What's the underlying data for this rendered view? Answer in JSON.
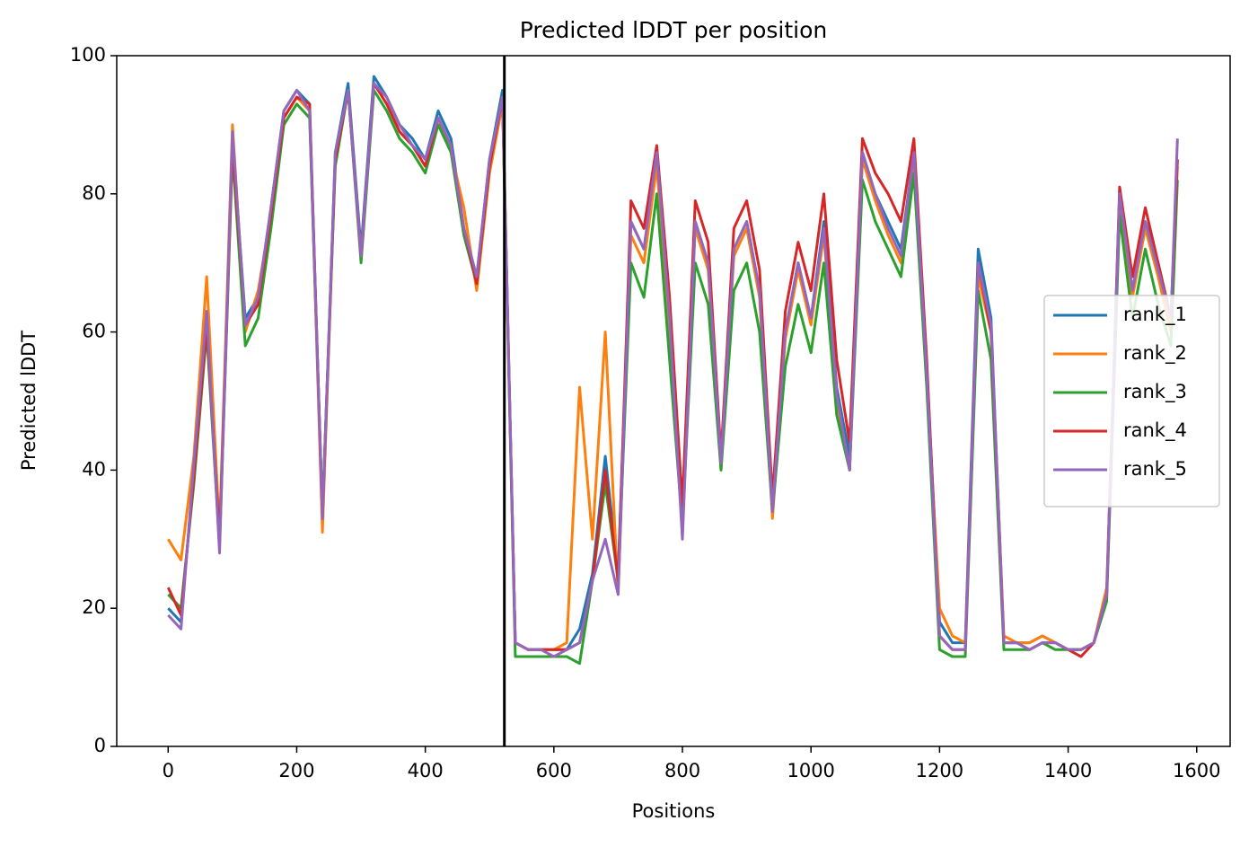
{
  "chart_data": {
    "type": "line",
    "title": "Predicted lDDT per position",
    "xlabel": "Positions",
    "ylabel": "Predicted lDDT",
    "x": [
      0,
      20,
      40,
      60,
      80,
      100,
      120,
      140,
      160,
      180,
      200,
      220,
      240,
      260,
      280,
      300,
      320,
      340,
      360,
      380,
      400,
      420,
      440,
      460,
      480,
      500,
      520,
      540,
      560,
      580,
      600,
      620,
      640,
      660,
      680,
      700,
      720,
      740,
      760,
      780,
      800,
      820,
      840,
      860,
      880,
      900,
      920,
      940,
      960,
      980,
      1000,
      1020,
      1040,
      1060,
      1080,
      1100,
      1120,
      1140,
      1160,
      1180,
      1200,
      1220,
      1240,
      1260,
      1280,
      1300,
      1320,
      1340,
      1360,
      1380,
      1400,
      1420,
      1440,
      1460,
      1480,
      1500,
      1520,
      1540,
      1560,
      1570
    ],
    "series": [
      {
        "name": "rank_1",
        "color": "#1f77b4",
        "values": [
          20,
          18,
          40,
          62,
          30,
          88,
          62,
          65,
          78,
          92,
          95,
          93,
          33,
          86,
          96,
          72,
          97,
          94,
          90,
          88,
          85,
          92,
          88,
          75,
          68,
          85,
          95,
          15,
          14,
          14,
          14,
          14,
          17,
          25,
          42,
          25,
          76,
          72,
          85,
          62,
          35,
          76,
          70,
          42,
          72,
          76,
          66,
          36,
          60,
          70,
          62,
          76,
          52,
          42,
          86,
          80,
          76,
          72,
          86,
          55,
          18,
          15,
          15,
          72,
          62,
          15,
          15,
          15,
          16,
          15,
          14,
          14,
          15,
          22,
          80,
          66,
          76,
          70,
          62,
          85
        ]
      },
      {
        "name": "rank_2",
        "color": "#ff7f0e",
        "values": [
          30,
          27,
          42,
          68,
          31,
          90,
          60,
          66,
          77,
          91,
          94,
          92,
          31,
          85,
          95,
          71,
          96,
          93,
          89,
          87,
          84,
          91,
          86,
          78,
          66,
          83,
          93,
          15,
          14,
          14,
          14,
          15,
          52,
          30,
          60,
          22,
          74,
          70,
          84,
          60,
          34,
          75,
          69,
          40,
          71,
          75,
          65,
          33,
          59,
          69,
          61,
          74,
          50,
          40,
          85,
          79,
          74,
          70,
          85,
          53,
          20,
          16,
          15,
          68,
          60,
          16,
          15,
          15,
          16,
          15,
          14,
          14,
          15,
          23,
          79,
          65,
          75,
          68,
          60,
          84
        ]
      },
      {
        "name": "rank_3",
        "color": "#2ca02c",
        "values": [
          22,
          20,
          38,
          60,
          29,
          86,
          58,
          62,
          75,
          90,
          93,
          91,
          34,
          84,
          95,
          70,
          95,
          92,
          88,
          86,
          83,
          90,
          86,
          74,
          67,
          84,
          94,
          13,
          13,
          13,
          13,
          13,
          12,
          24,
          38,
          24,
          70,
          65,
          80,
          56,
          32,
          70,
          64,
          40,
          66,
          70,
          60,
          34,
          55,
          64,
          57,
          70,
          48,
          40,
          82,
          76,
          72,
          68,
          83,
          52,
          14,
          13,
          13,
          66,
          56,
          14,
          14,
          14,
          15,
          14,
          14,
          14,
          15,
          21,
          77,
          62,
          72,
          64,
          58,
          82
        ]
      },
      {
        "name": "rank_4",
        "color": "#d62728",
        "values": [
          23,
          19,
          39,
          61,
          30,
          87,
          61,
          64,
          77,
          91,
          94,
          93,
          33,
          85,
          95,
          71,
          96,
          93,
          89,
          87,
          84,
          91,
          87,
          75,
          67,
          84,
          94,
          15,
          14,
          14,
          14,
          14,
          15,
          24,
          40,
          24,
          79,
          75,
          87,
          65,
          35,
          79,
          73,
          42,
          75,
          79,
          69,
          36,
          63,
          73,
          66,
          80,
          56,
          44,
          88,
          83,
          80,
          76,
          88,
          56,
          16,
          14,
          14,
          70,
          60,
          15,
          15,
          14,
          15,
          15,
          14,
          13,
          15,
          22,
          81,
          68,
          78,
          70,
          62,
          85
        ]
      },
      {
        "name": "rank_5",
        "color": "#9467bd",
        "values": [
          19,
          17,
          41,
          63,
          28,
          89,
          61,
          65,
          78,
          92,
          95,
          92,
          33,
          86,
          95,
          71,
          96,
          94,
          90,
          87,
          85,
          91,
          87,
          75,
          68,
          85,
          94,
          15,
          14,
          14,
          13,
          14,
          15,
          24,
          30,
          22,
          76,
          72,
          86,
          62,
          30,
          76,
          70,
          41,
          72,
          76,
          66,
          34,
          60,
          70,
          62,
          75,
          51,
          40,
          86,
          80,
          75,
          71,
          86,
          54,
          16,
          14,
          14,
          70,
          61,
          15,
          15,
          14,
          15,
          15,
          14,
          14,
          15,
          22,
          80,
          66,
          76,
          69,
          62,
          88
        ]
      }
    ],
    "vlines": [
      523
    ],
    "xlim": [
      -80,
      1652
    ],
    "xticks": [
      0,
      200,
      400,
      600,
      800,
      1000,
      1200,
      1400,
      1600
    ],
    "ylim": [
      0,
      100
    ],
    "yticks": [
      0,
      20,
      40,
      60,
      80,
      100
    ],
    "grid": false,
    "legend": "center right"
  }
}
